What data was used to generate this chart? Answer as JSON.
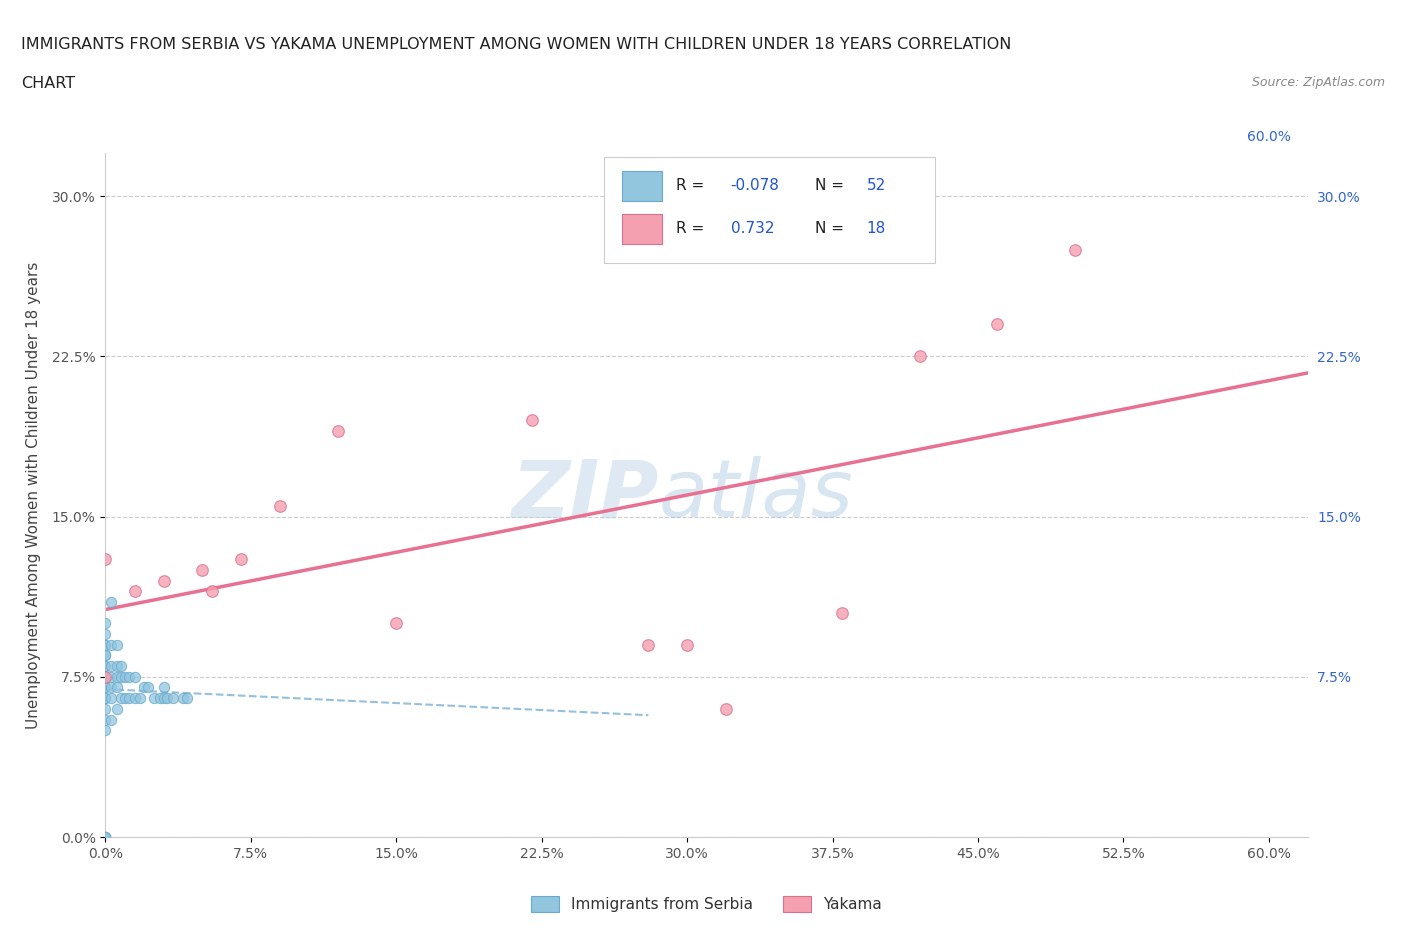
{
  "title_line1": "IMMIGRANTS FROM SERBIA VS YAKAMA UNEMPLOYMENT AMONG WOMEN WITH CHILDREN UNDER 18 YEARS CORRELATION",
  "title_line2": "CHART",
  "source_text": "Source: ZipAtlas.com",
  "ylabel": "Unemployment Among Women with Children Under 18 years",
  "series1_name": "Immigrants from Serbia",
  "series1_color": "#92c5de",
  "series1_R": -0.078,
  "series1_N": 52,
  "series1_trend_color": "#b0c8dc",
  "series2_name": "Yakama",
  "series2_color": "#f4a0b0",
  "series2_R": 0.732,
  "series2_N": 18,
  "series2_trend_color": "#e87090",
  "legend_color": "#2255cc",
  "xlim": [
    0.0,
    0.62
  ],
  "ylim": [
    0.0,
    0.32
  ],
  "xticks": [
    0.0,
    0.075,
    0.15,
    0.225,
    0.3,
    0.375,
    0.45,
    0.525,
    0.6
  ],
  "yticks": [
    0.0,
    0.075,
    0.15,
    0.225,
    0.3
  ],
  "watermark_zip": "ZIP",
  "watermark_atlas": "atlas",
  "s1_x": [
    0.0,
    0.0,
    0.0,
    0.0,
    0.0,
    0.0,
    0.0,
    0.0,
    0.0,
    0.0,
    0.0,
    0.0,
    0.0,
    0.0,
    0.0,
    0.0,
    0.0,
    0.0,
    0.0,
    0.0,
    0.003,
    0.003,
    0.003,
    0.003,
    0.003,
    0.003,
    0.003,
    0.006,
    0.006,
    0.006,
    0.006,
    0.006,
    0.008,
    0.008,
    0.008,
    0.01,
    0.01,
    0.012,
    0.012,
    0.015,
    0.015,
    0.018,
    0.02,
    0.022,
    0.025,
    0.028,
    0.03,
    0.03,
    0.032,
    0.035,
    0.04,
    0.042
  ],
  "s1_y": [
    0.05,
    0.055,
    0.06,
    0.065,
    0.065,
    0.07,
    0.07,
    0.075,
    0.075,
    0.08,
    0.08,
    0.085,
    0.085,
    0.09,
    0.09,
    0.095,
    0.1,
    0.0,
    0.0,
    0.0,
    0.055,
    0.065,
    0.07,
    0.075,
    0.08,
    0.09,
    0.11,
    0.06,
    0.07,
    0.075,
    0.08,
    0.09,
    0.065,
    0.075,
    0.08,
    0.065,
    0.075,
    0.065,
    0.075,
    0.065,
    0.075,
    0.065,
    0.07,
    0.07,
    0.065,
    0.065,
    0.065,
    0.07,
    0.065,
    0.065,
    0.065,
    0.065
  ],
  "s2_x": [
    0.0,
    0.0,
    0.015,
    0.03,
    0.05,
    0.055,
    0.07,
    0.09,
    0.12,
    0.15,
    0.22,
    0.28,
    0.3,
    0.32,
    0.38,
    0.42,
    0.46,
    0.5
  ],
  "s2_y": [
    0.075,
    0.13,
    0.115,
    0.12,
    0.125,
    0.115,
    0.13,
    0.155,
    0.19,
    0.1,
    0.195,
    0.09,
    0.09,
    0.06,
    0.105,
    0.225,
    0.24,
    0.275
  ]
}
